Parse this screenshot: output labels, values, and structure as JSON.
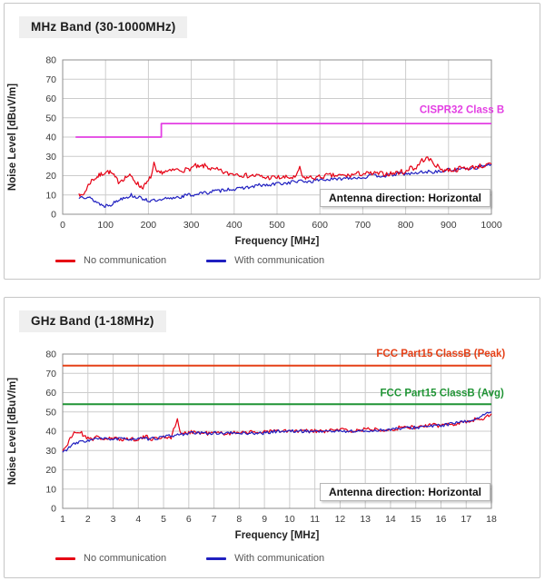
{
  "chart_data": [
    {
      "type": "line",
      "panel_title": "MHz Band (30-1000MHz)",
      "xlabel": "Frequency [MHz]",
      "ylabel": "Noise Level [dBuV/m]",
      "xlim": [
        0,
        1000
      ],
      "ylim": [
        0,
        80
      ],
      "x_ticks": [
        0,
        100,
        200,
        300,
        400,
        500,
        600,
        700,
        800,
        900,
        1000
      ],
      "y_ticks": [
        0,
        10,
        20,
        30,
        40,
        50,
        60,
        70,
        80
      ],
      "grid": true,
      "legend_position": "bottom",
      "annotation": "Antenna direction: Horizontal",
      "legend": [
        {
          "label": "No communication",
          "color": "#e60014"
        },
        {
          "label": "With communication",
          "color": "#2020c0"
        }
      ],
      "series": [
        {
          "name": "CISPR32 Class B",
          "color": "#e33fe3",
          "width": 1.8,
          "noise": 0,
          "seed": 1,
          "points": [
            [
              30,
              40
            ],
            [
              230,
              40
            ],
            [
              230,
              47
            ],
            [
              1000,
              47
            ]
          ],
          "label": {
            "text": "CISPR32 Class B",
            "x": 1030,
            "y": 52.5,
            "anchor": "end"
          }
        },
        {
          "name": "With communication",
          "color": "#2020c0",
          "width": 1.2,
          "noise": 0.9,
          "seed": 13,
          "points": [
            [
              38,
              8
            ],
            [
              44,
              10
            ],
            [
              50,
              9
            ],
            [
              58,
              9
            ],
            [
              66,
              8
            ],
            [
              74,
              7
            ],
            [
              82,
              6
            ],
            [
              90,
              5
            ],
            [
              97,
              4
            ],
            [
              104,
              5
            ],
            [
              112,
              5
            ],
            [
              120,
              6
            ],
            [
              128,
              7
            ],
            [
              136,
              8
            ],
            [
              144,
              9
            ],
            [
              152,
              9
            ],
            [
              160,
              10
            ],
            [
              168,
              9
            ],
            [
              176,
              9
            ],
            [
              184,
              8
            ],
            [
              192,
              8
            ],
            [
              200,
              7
            ],
            [
              210,
              7
            ],
            [
              220,
              7
            ],
            [
              230,
              7
            ],
            [
              240,
              8
            ],
            [
              252,
              8
            ],
            [
              264,
              9
            ],
            [
              276,
              9
            ],
            [
              290,
              10
            ],
            [
              305,
              10
            ],
            [
              320,
              11
            ],
            [
              335,
              11
            ],
            [
              350,
              12
            ],
            [
              365,
              12
            ],
            [
              380,
              13
            ],
            [
              395,
              13
            ],
            [
              410,
              13
            ],
            [
              425,
              14
            ],
            [
              440,
              14
            ],
            [
              455,
              15
            ],
            [
              470,
              15
            ],
            [
              485,
              15
            ],
            [
              500,
              16
            ],
            [
              520,
              16
            ],
            [
              540,
              17
            ],
            [
              560,
              17
            ],
            [
              580,
              17
            ],
            [
              600,
              18
            ],
            [
              620,
              18
            ],
            [
              640,
              18
            ],
            [
              660,
              19
            ],
            [
              680,
              19
            ],
            [
              700,
              19
            ],
            [
              720,
              20
            ],
            [
              740,
              20
            ],
            [
              760,
              20
            ],
            [
              780,
              21
            ],
            [
              800,
              21
            ],
            [
              820,
              21
            ],
            [
              840,
              22
            ],
            [
              860,
              22
            ],
            [
              880,
              22
            ],
            [
              900,
              23
            ],
            [
              920,
              23
            ],
            [
              940,
              24
            ],
            [
              960,
              24
            ],
            [
              980,
              25
            ],
            [
              1000,
              26
            ]
          ]
        },
        {
          "name": "No communication",
          "color": "#e60014",
          "width": 1.2,
          "noise": 1.3,
          "seed": 7,
          "points": [
            [
              38,
              12
            ],
            [
              42,
              9
            ],
            [
              48,
              10
            ],
            [
              55,
              13
            ],
            [
              62,
              16
            ],
            [
              70,
              18
            ],
            [
              78,
              19
            ],
            [
              85,
              20
            ],
            [
              92,
              21
            ],
            [
              100,
              22
            ],
            [
              108,
              22
            ],
            [
              115,
              21
            ],
            [
              122,
              19
            ],
            [
              130,
              17
            ],
            [
              138,
              18
            ],
            [
              146,
              19
            ],
            [
              154,
              20
            ],
            [
              162,
              19
            ],
            [
              170,
              17
            ],
            [
              178,
              15
            ],
            [
              185,
              14
            ],
            [
              192,
              15
            ],
            [
              200,
              17
            ],
            [
              208,
              21
            ],
            [
              213,
              26
            ],
            [
              218,
              22
            ],
            [
              225,
              21
            ],
            [
              232,
              22
            ],
            [
              240,
              22
            ],
            [
              250,
              22
            ],
            [
              260,
              23
            ],
            [
              270,
              23
            ],
            [
              280,
              23
            ],
            [
              290,
              23
            ],
            [
              300,
              24
            ],
            [
              310,
              25
            ],
            [
              318,
              24
            ],
            [
              326,
              25
            ],
            [
              334,
              25
            ],
            [
              342,
              24
            ],
            [
              350,
              23
            ],
            [
              360,
              23
            ],
            [
              372,
              22
            ],
            [
              384,
              21
            ],
            [
              396,
              21
            ],
            [
              410,
              21
            ],
            [
              425,
              20
            ],
            [
              440,
              20
            ],
            [
              455,
              20
            ],
            [
              470,
              19
            ],
            [
              485,
              19
            ],
            [
              500,
              19
            ],
            [
              515,
              19
            ],
            [
              530,
              19
            ],
            [
              545,
              19
            ],
            [
              553,
              25
            ],
            [
              558,
              19
            ],
            [
              575,
              19
            ],
            [
              595,
              19
            ],
            [
              615,
              20
            ],
            [
              640,
              20
            ],
            [
              665,
              20
            ],
            [
              690,
              21
            ],
            [
              715,
              21
            ],
            [
              740,
              21
            ],
            [
              765,
              21
            ],
            [
              790,
              22
            ],
            [
              805,
              22
            ],
            [
              812,
              26
            ],
            [
              818,
              23
            ],
            [
              828,
              25
            ],
            [
              838,
              28
            ],
            [
              848,
              29
            ],
            [
              858,
              28
            ],
            [
              868,
              26
            ],
            [
              878,
              24
            ],
            [
              888,
              23
            ],
            [
              900,
              23
            ],
            [
              915,
              23
            ],
            [
              930,
              24
            ],
            [
              950,
              24
            ],
            [
              970,
              25
            ],
            [
              985,
              25
            ],
            [
              1000,
              26
            ]
          ]
        }
      ]
    },
    {
      "type": "line",
      "panel_title": "GHz Band (1-18MHz)",
      "xlabel": "Frequency [MHz]",
      "ylabel": "Noise Level [dBuV/m]",
      "xlim": [
        1,
        18
      ],
      "ylim": [
        0,
        80
      ],
      "x_ticks": [
        1,
        2,
        3,
        4,
        5,
        6,
        7,
        8,
        9,
        10,
        11,
        12,
        13,
        14,
        15,
        16,
        17,
        18
      ],
      "y_ticks": [
        0,
        10,
        20,
        30,
        40,
        50,
        60,
        70,
        80
      ],
      "grid": true,
      "legend_position": "bottom",
      "annotation": "Antenna direction: Horizontal",
      "legend": [
        {
          "label": "No communication",
          "color": "#e60014"
        },
        {
          "label": "With communication",
          "color": "#2020c0"
        }
      ],
      "series": [
        {
          "name": "FCC Part15 ClassB (Peak)",
          "color": "#e54017",
          "width": 2,
          "noise": 0,
          "seed": 1,
          "points": [
            [
              1,
              74
            ],
            [
              18,
              74
            ]
          ],
          "label": {
            "text": "FCC Part15 ClassB (Peak)",
            "x": 18.55,
            "y": 78.6,
            "anchor": "end"
          }
        },
        {
          "name": "FCC Part15 ClassB (Avg)",
          "color": "#209435",
          "width": 2,
          "noise": 0,
          "seed": 1,
          "points": [
            [
              1,
              54
            ],
            [
              18,
              54
            ]
          ],
          "label": {
            "text": "FCC Part15 ClassB (Avg)",
            "x": 18.5,
            "y": 58.2,
            "anchor": "end"
          }
        },
        {
          "name": "No communication",
          "color": "#e60014",
          "width": 1.2,
          "noise": 1.1,
          "seed": 21,
          "points": [
            [
              1,
              30
            ],
            [
              1.1,
              32
            ],
            [
              1.2,
              33
            ],
            [
              1.3,
              36
            ],
            [
              1.4,
              38
            ],
            [
              1.5,
              40
            ],
            [
              1.6,
              39
            ],
            [
              1.7,
              40
            ],
            [
              1.8,
              38
            ],
            [
              1.9,
              37
            ],
            [
              2,
              37
            ],
            [
              2.2,
              36
            ],
            [
              2.4,
              37
            ],
            [
              2.6,
              36
            ],
            [
              2.8,
              36
            ],
            [
              3,
              36
            ],
            [
              3.3,
              36
            ],
            [
              3.6,
              36
            ],
            [
              4,
              36
            ],
            [
              4.3,
              37
            ],
            [
              4.6,
              36
            ],
            [
              5,
              37
            ],
            [
              5.3,
              37
            ],
            [
              5.55,
              46
            ],
            [
              5.7,
              38
            ],
            [
              5.9,
              39
            ],
            [
              6.1,
              40
            ],
            [
              6.4,
              39
            ],
            [
              6.7,
              39
            ],
            [
              7,
              39
            ],
            [
              7.4,
              39
            ],
            [
              7.8,
              39
            ],
            [
              8.2,
              40
            ],
            [
              8.6,
              39
            ],
            [
              9,
              40
            ],
            [
              9.5,
              40
            ],
            [
              10,
              40
            ],
            [
              10.5,
              40
            ],
            [
              11,
              40
            ],
            [
              11.5,
              40
            ],
            [
              12,
              41
            ],
            [
              12.5,
              40
            ],
            [
              13,
              41
            ],
            [
              13.5,
              41
            ],
            [
              14,
              41
            ],
            [
              14.5,
              42
            ],
            [
              15,
              42
            ],
            [
              15.5,
              43
            ],
            [
              16,
              43
            ],
            [
              16.5,
              44
            ],
            [
              17,
              45
            ],
            [
              17.4,
              46
            ],
            [
              17.7,
              47
            ],
            [
              18,
              49
            ]
          ]
        },
        {
          "name": "With communication",
          "color": "#2020c0",
          "width": 1.2,
          "noise": 0.8,
          "seed": 33,
          "points": [
            [
              1,
              29
            ],
            [
              1.2,
              31
            ],
            [
              1.4,
              33
            ],
            [
              1.6,
              34
            ],
            [
              1.8,
              35
            ],
            [
              2,
              35
            ],
            [
              2.3,
              36
            ],
            [
              2.6,
              36
            ],
            [
              3,
              36
            ],
            [
              3.5,
              36
            ],
            [
              4,
              36
            ],
            [
              4.5,
              36
            ],
            [
              5,
              37
            ],
            [
              5.5,
              38
            ],
            [
              6,
              39
            ],
            [
              6.5,
              39
            ],
            [
              7,
              39
            ],
            [
              7.5,
              39
            ],
            [
              8,
              39
            ],
            [
              8.5,
              39
            ],
            [
              9,
              39
            ],
            [
              9.5,
              40
            ],
            [
              10,
              40
            ],
            [
              11,
              40
            ],
            [
              12,
              40
            ],
            [
              13,
              40
            ],
            [
              14,
              41
            ],
            [
              15,
              42
            ],
            [
              16,
              43
            ],
            [
              17,
              45
            ],
            [
              17.5,
              47
            ],
            [
              18,
              50
            ]
          ]
        }
      ]
    }
  ]
}
